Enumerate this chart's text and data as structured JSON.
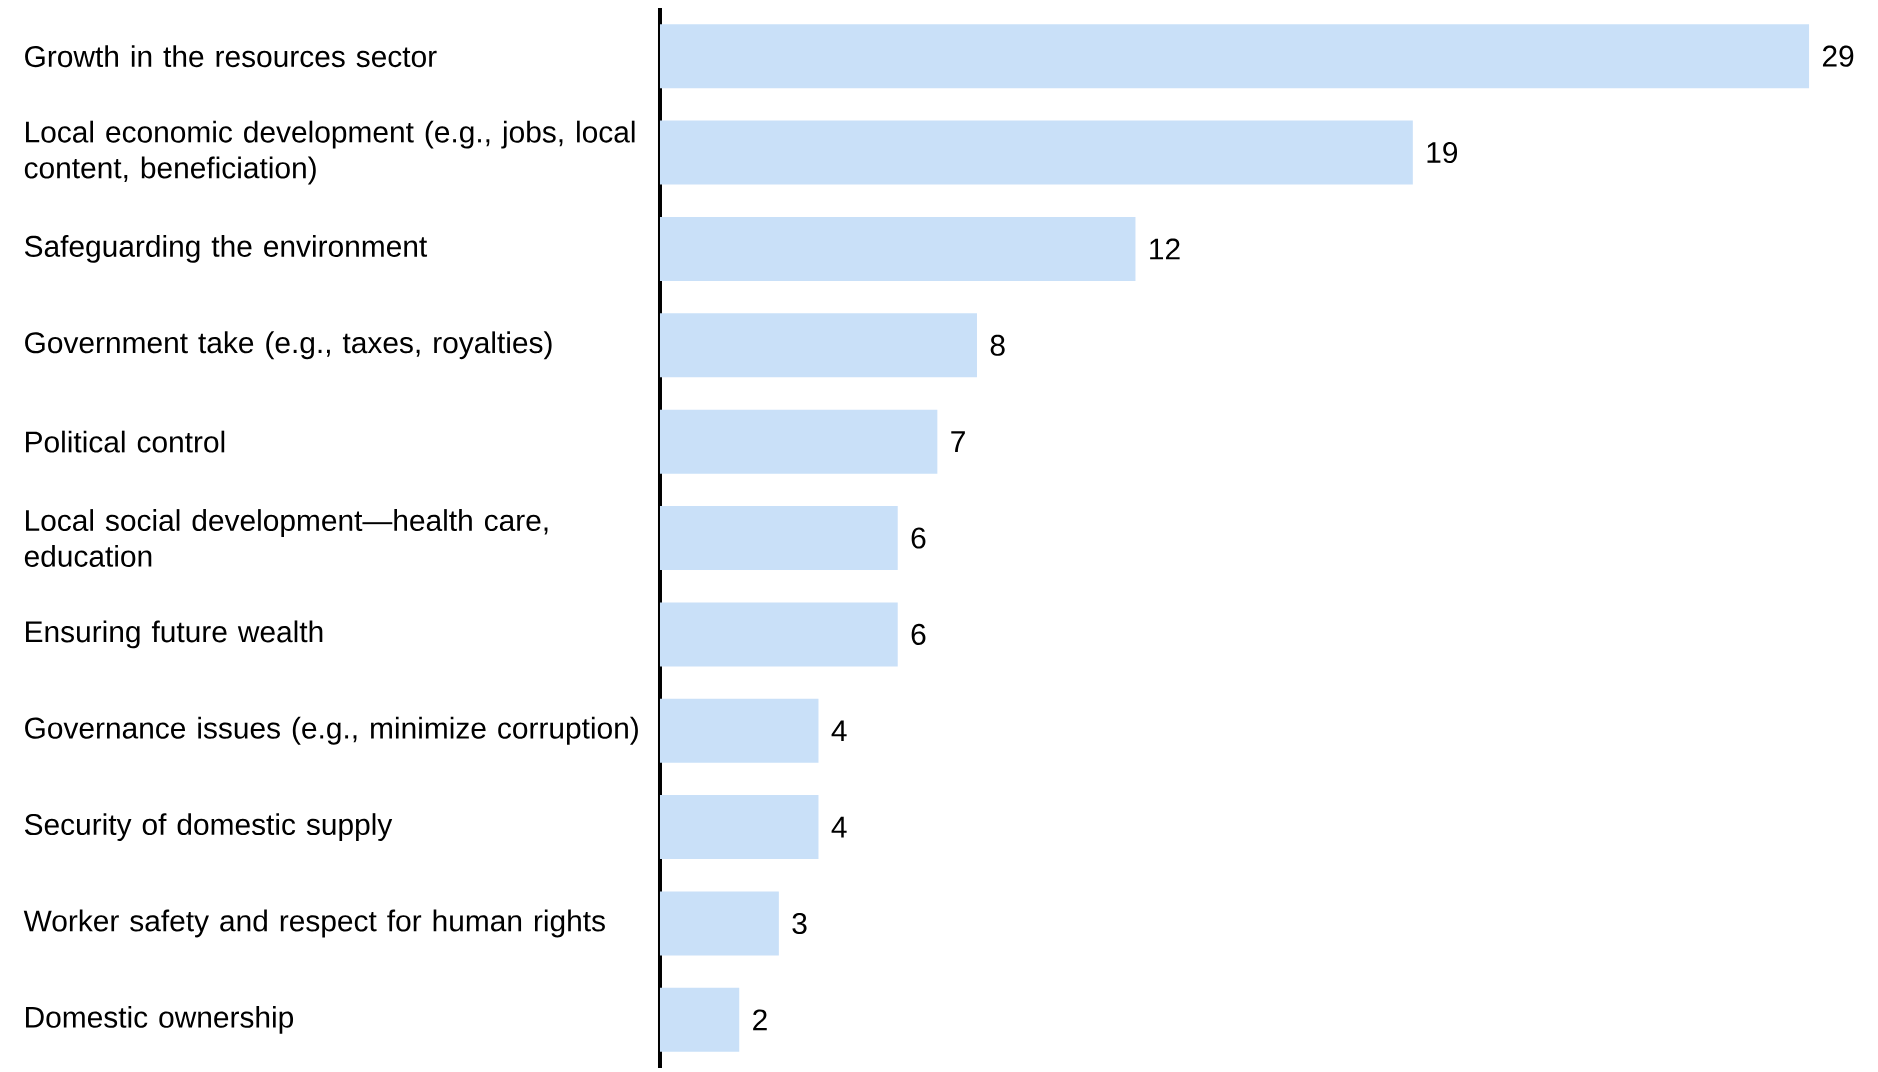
{
  "chart_data": {
    "type": "bar",
    "orientation": "horizontal",
    "categories": [
      "Growth in the resources sector",
      "Local economic development (e.g., jobs, local content, beneficiation)",
      "Safeguarding the environment",
      "Government take (e.g., taxes, royalties)",
      "Political control",
      "Local social development—health care, education",
      "Ensuring future wealth",
      "Governance issues (e.g., minimize corruption)",
      "Security of domestic supply",
      "Worker safety and respect for human rights",
      "Domestic ownership"
    ],
    "values": [
      29,
      19,
      12,
      8,
      7,
      6,
      6,
      4,
      4,
      3,
      2
    ],
    "color": "#c9e0f8",
    "data_labels": true
  }
}
